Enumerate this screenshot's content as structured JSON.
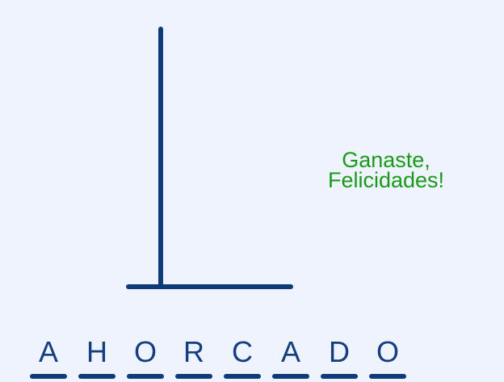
{
  "game": {
    "message_line1": "Ganaste,",
    "message_line2": "Felicidades!",
    "word_letters": [
      "A",
      "H",
      "O",
      "R",
      "C",
      "A",
      "D",
      "O"
    ]
  },
  "colors": {
    "background": "#eff3fe",
    "gallows": "#103b7a",
    "message": "#1a9a1a",
    "letters": "#143f7e"
  }
}
